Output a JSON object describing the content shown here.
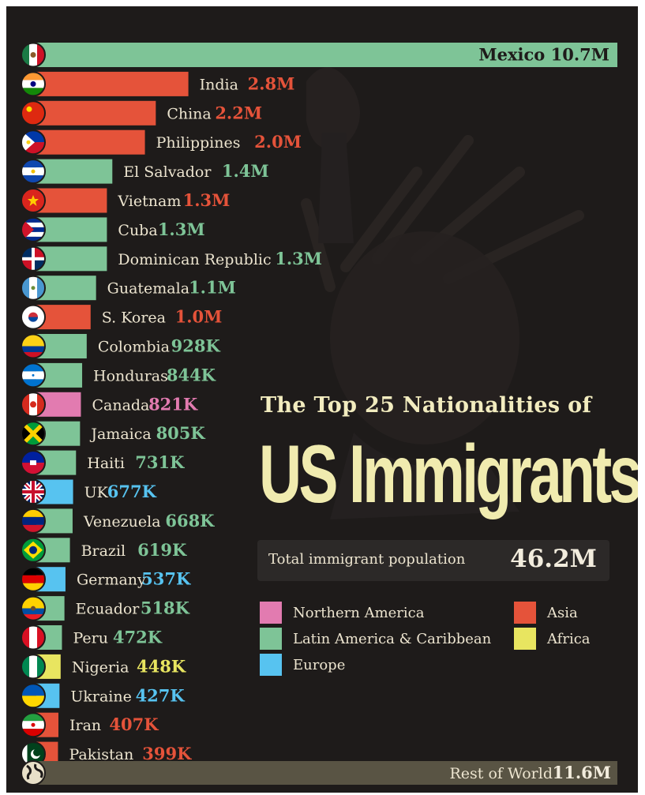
{
  "colors": {
    "northern_america": "#e27bb0",
    "latin_america": "#7ec497",
    "europe": "#57c3f0",
    "asia": "#e5533a",
    "africa": "#e8e560",
    "rest": "#595444"
  },
  "chart_data": {
    "type": "bar",
    "orientation": "horizontal",
    "title": "The Top 25 Nationalities of",
    "subtitle": "US Immigrants",
    "unit": "immigrants",
    "bars": [
      {
        "country": "Mexico",
        "label": "Mexico",
        "value_text": "10.7M",
        "value": 10.7,
        "region": "latin_america",
        "flag": "mexico-flag-icon"
      },
      {
        "country": "India",
        "label": "India",
        "value_text": "2.8M",
        "value": 2.8,
        "region": "asia",
        "flag": "india-flag-icon"
      },
      {
        "country": "China",
        "label": "China",
        "value_text": "2.2M",
        "value": 2.2,
        "region": "asia",
        "flag": "china-flag-icon"
      },
      {
        "country": "Philippines",
        "label": "Philippines",
        "value_text": "2.0M",
        "value": 2.0,
        "region": "asia",
        "flag": "philippines-flag-icon"
      },
      {
        "country": "El Salvador",
        "label": "El Salvador",
        "value_text": "1.4M",
        "value": 1.4,
        "region": "latin_america",
        "flag": "el-salvador-flag-icon"
      },
      {
        "country": "Vietnam",
        "label": "Vietnam",
        "value_text": "1.3M",
        "value": 1.3,
        "region": "asia",
        "flag": "vietnam-flag-icon"
      },
      {
        "country": "Cuba",
        "label": "Cuba",
        "value_text": "1.3M",
        "value": 1.3,
        "region": "latin_america",
        "flag": "cuba-flag-icon"
      },
      {
        "country": "Dominican Republic",
        "label": "Dominican Republic",
        "value_text": "1.3M",
        "value": 1.3,
        "region": "latin_america",
        "flag": "dominican-republic-flag-icon"
      },
      {
        "country": "Guatemala",
        "label": "Guatemala",
        "value_text": "1.1M",
        "value": 1.1,
        "region": "latin_america",
        "flag": "guatemala-flag-icon"
      },
      {
        "country": "S. Korea",
        "label": "S. Korea",
        "value_text": "1.0M",
        "value": 1.0,
        "region": "asia",
        "flag": "south-korea-flag-icon"
      },
      {
        "country": "Colombia",
        "label": "Colombia",
        "value_text": "928K",
        "value": 0.928,
        "region": "latin_america",
        "flag": "colombia-flag-icon"
      },
      {
        "country": "Honduras",
        "label": "Honduras",
        "value_text": "844K",
        "value": 0.844,
        "region": "latin_america",
        "flag": "honduras-flag-icon"
      },
      {
        "country": "Canada",
        "label": "Canada",
        "value_text": "821K",
        "value": 0.821,
        "region": "northern_america",
        "flag": "canada-flag-icon"
      },
      {
        "country": "Jamaica",
        "label": "Jamaica",
        "value_text": "805K",
        "value": 0.805,
        "region": "latin_america",
        "flag": "jamaica-flag-icon"
      },
      {
        "country": "Haiti",
        "label": "Haiti",
        "value_text": "731K",
        "value": 0.731,
        "region": "latin_america",
        "flag": "haiti-flag-icon"
      },
      {
        "country": "UK",
        "label": "UK",
        "value_text": "677K",
        "value": 0.677,
        "region": "europe",
        "flag": "uk-flag-icon"
      },
      {
        "country": "Venezuela",
        "label": "Venezuela",
        "value_text": "668K",
        "value": 0.668,
        "region": "latin_america",
        "flag": "venezuela-flag-icon"
      },
      {
        "country": "Brazil",
        "label": "Brazil",
        "value_text": "619K",
        "value": 0.619,
        "region": "latin_america",
        "flag": "brazil-flag-icon"
      },
      {
        "country": "Germany",
        "label": "Germany",
        "value_text": "537K",
        "value": 0.537,
        "region": "europe",
        "flag": "germany-flag-icon"
      },
      {
        "country": "Ecuador",
        "label": "Ecuador",
        "value_text": "518K",
        "value": 0.518,
        "region": "latin_america",
        "flag": "ecuador-flag-icon"
      },
      {
        "country": "Peru",
        "label": "Peru",
        "value_text": "472K",
        "value": 0.472,
        "region": "latin_america",
        "flag": "peru-flag-icon"
      },
      {
        "country": "Nigeria",
        "label": "Nigeria",
        "value_text": "448K",
        "value": 0.448,
        "region": "africa",
        "flag": "nigeria-flag-icon"
      },
      {
        "country": "Ukraine",
        "label": "Ukraine",
        "value_text": "427K",
        "value": 0.427,
        "region": "europe",
        "flag": "ukraine-flag-icon"
      },
      {
        "country": "Iran",
        "label": "Iran",
        "value_text": "407K",
        "value": 0.407,
        "region": "asia",
        "flag": "iran-flag-icon"
      },
      {
        "country": "Pakistan",
        "label": "Pakistan",
        "value_text": "399K",
        "value": 0.399,
        "region": "asia",
        "flag": "pakistan-flag-icon"
      }
    ],
    "rest_of_world": {
      "label": "Rest of World",
      "value_text": "11.6M",
      "value": 11.6,
      "region": "rest",
      "flag": "globe-icon"
    },
    "legend": [
      {
        "key": "northern_america",
        "label": "Northern America"
      },
      {
        "key": "latin_america",
        "label": "Latin America & Caribbean"
      },
      {
        "key": "europe",
        "label": "Europe"
      },
      {
        "key": "asia",
        "label": "Asia"
      },
      {
        "key": "africa",
        "label": "Africa"
      }
    ]
  },
  "title": {
    "line1": "The Top 25 Nationalities of",
    "line2": "US Immigrants"
  },
  "total": {
    "label": "Total immigrant population",
    "value": "46.2M"
  }
}
